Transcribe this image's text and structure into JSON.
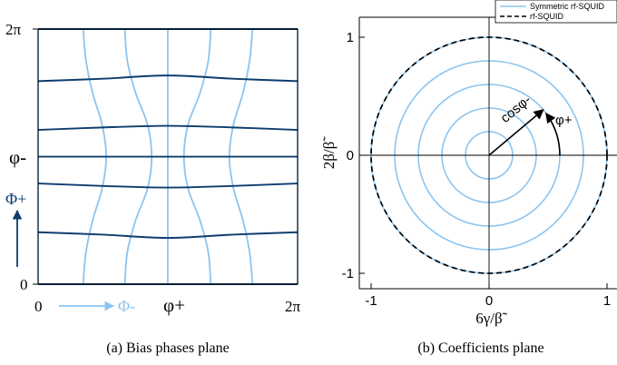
{
  "colors": {
    "light": "#8cc4ef",
    "dark": "#0e3d6e",
    "black": "#000000"
  },
  "chart_data": [
    {
      "type": "line",
      "panel": "(a)",
      "caption": "(a) Bias phases plane",
      "xlabel": "φ+",
      "ylabel": "φ-",
      "x_tick_labels": [
        "0",
        "2π"
      ],
      "y_tick_labels": [
        "0",
        "2π"
      ],
      "xlim": [
        0,
        6.283
      ],
      "ylim": [
        0,
        6.283
      ],
      "axis_arrow_labels": {
        "x": "Φ-",
        "y": "Φ+"
      },
      "series": [
        {
          "color": "light",
          "kind": "vertical-contour",
          "points": [
            [
              0,
              0
            ],
            [
              0,
              6.283
            ]
          ]
        },
        {
          "color": "light",
          "kind": "vertical-contour",
          "points": [
            [
              1.09,
              0
            ],
            [
              1.16,
              0.79
            ],
            [
              1.32,
              1.57
            ],
            [
              1.55,
              2.36
            ],
            [
              1.65,
              3.14
            ],
            [
              1.55,
              3.93
            ],
            [
              1.32,
              4.71
            ],
            [
              1.16,
              5.5
            ],
            [
              1.09,
              6.283
            ]
          ]
        },
        {
          "color": "light",
          "kind": "vertical-contour",
          "points": [
            [
              2.1,
              0
            ],
            [
              2.16,
              0.79
            ],
            [
              2.36,
              1.57
            ],
            [
              2.65,
              2.36
            ],
            [
              2.75,
              3.14
            ],
            [
              2.65,
              3.93
            ],
            [
              2.36,
              4.71
            ],
            [
              2.16,
              5.5
            ],
            [
              2.1,
              6.283
            ]
          ]
        },
        {
          "color": "light",
          "kind": "vertical-contour",
          "points": [
            [
              3.14,
              0
            ],
            [
              3.14,
              6.283
            ]
          ]
        },
        {
          "color": "light",
          "kind": "vertical-contour",
          "points": [
            [
              4.18,
              0
            ],
            [
              4.12,
              0.79
            ],
            [
              3.92,
              1.57
            ],
            [
              3.63,
              2.36
            ],
            [
              3.53,
              3.14
            ],
            [
              3.63,
              3.93
            ],
            [
              3.92,
              4.71
            ],
            [
              4.12,
              5.5
            ],
            [
              4.18,
              6.283
            ]
          ]
        },
        {
          "color": "light",
          "kind": "vertical-contour",
          "points": [
            [
              5.19,
              0
            ],
            [
              5.12,
              0.79
            ],
            [
              4.96,
              1.57
            ],
            [
              4.73,
              2.36
            ],
            [
              4.63,
              3.14
            ],
            [
              4.73,
              3.93
            ],
            [
              4.96,
              4.71
            ],
            [
              5.12,
              5.5
            ],
            [
              5.19,
              6.283
            ]
          ]
        },
        {
          "color": "light",
          "kind": "vertical-contour",
          "points": [
            [
              6.283,
              0
            ],
            [
              6.283,
              6.283
            ]
          ]
        },
        {
          "color": "dark",
          "kind": "horizontal-contour",
          "points": [
            [
              0,
              0
            ],
            [
              6.283,
              0
            ]
          ]
        },
        {
          "color": "dark",
          "kind": "horizontal-contour",
          "points": [
            [
              0,
              1.28
            ],
            [
              1.57,
              1.22
            ],
            [
              3.14,
              1.14
            ],
            [
              4.71,
              1.22
            ],
            [
              6.283,
              1.28
            ]
          ]
        },
        {
          "color": "dark",
          "kind": "horizontal-contour",
          "points": [
            [
              0,
              2.48
            ],
            [
              1.57,
              2.42
            ],
            [
              3.14,
              2.38
            ],
            [
              4.71,
              2.42
            ],
            [
              6.283,
              2.48
            ]
          ]
        },
        {
          "color": "dark",
          "kind": "horizontal-contour",
          "points": [
            [
              0,
              3.14
            ],
            [
              6.283,
              3.14
            ]
          ]
        },
        {
          "color": "dark",
          "kind": "horizontal-contour",
          "points": [
            [
              0,
              3.8
            ],
            [
              1.57,
              3.86
            ],
            [
              3.14,
              3.9
            ],
            [
              4.71,
              3.86
            ],
            [
              6.283,
              3.8
            ]
          ]
        },
        {
          "color": "dark",
          "kind": "horizontal-contour",
          "points": [
            [
              0,
              5.0
            ],
            [
              1.57,
              5.06
            ],
            [
              3.14,
              5.14
            ],
            [
              4.71,
              5.06
            ],
            [
              6.283,
              5.0
            ]
          ]
        },
        {
          "color": "dark",
          "kind": "horizontal-contour",
          "points": [
            [
              0,
              6.283
            ],
            [
              6.283,
              6.283
            ]
          ]
        }
      ]
    },
    {
      "type": "line",
      "panel": "(b)",
      "caption": "(b) Coefficients plane",
      "xlabel": "6γ/β̃",
      "ylabel": "2β/β̃",
      "xlim": [
        -1.08,
        1.08
      ],
      "ylim": [
        -1.08,
        1.08
      ],
      "x_ticks": [
        -1,
        0,
        1
      ],
      "y_ticks": [
        -1,
        0,
        1
      ],
      "x_tick_labels": [
        "-1",
        "0",
        "1"
      ],
      "y_tick_labels": [
        "-1",
        "0",
        "1"
      ],
      "legend": {
        "position": "top-right",
        "entries": [
          "Symmetric rf-SQUID",
          "rf-SQUID"
        ]
      },
      "series": [
        {
          "name": "Symmetric rf-SQUID",
          "color": "light",
          "circles_radius": [
            0.2,
            0.4,
            0.6,
            0.8,
            1.0
          ]
        },
        {
          "name": "rf-SQUID",
          "color": "black",
          "dashed": true,
          "circles_radius": [
            1.0
          ]
        }
      ],
      "annotations": {
        "vector_angle_deg": 40,
        "vector_length": 0.6,
        "vector_label": "cosφ-",
        "arc_label": "φ+"
      }
    }
  ]
}
